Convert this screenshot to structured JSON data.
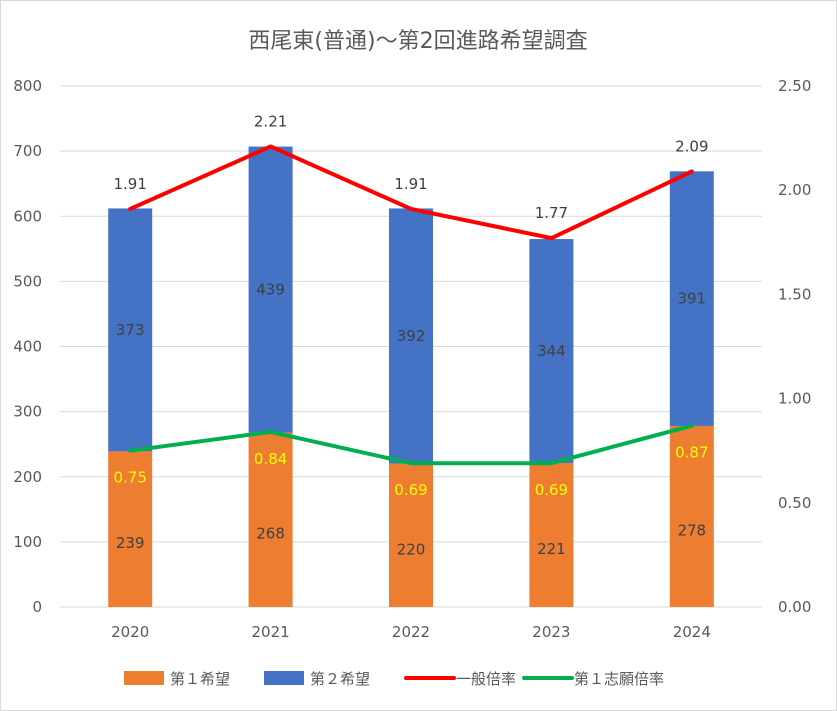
{
  "chart_data": {
    "type": "bar",
    "title": "西尾東(普通)～第2回進路希望調査",
    "categories": [
      "2020",
      "2021",
      "2022",
      "2023",
      "2024"
    ],
    "y_left": {
      "ylim": [
        0,
        800
      ],
      "ticks": [
        "0",
        "100",
        "200",
        "300",
        "400",
        "500",
        "600",
        "700",
        "800"
      ]
    },
    "y_right": {
      "ylim": [
        0,
        2.5
      ],
      "ticks": [
        "0.00",
        "0.50",
        "1.00",
        "1.50",
        "2.00",
        "2.50"
      ]
    },
    "grid": true,
    "legend_position": "bottom",
    "series": [
      {
        "name": "第１希望",
        "type": "bar",
        "stacked": true,
        "axis": "left",
        "color": "#ed7d31",
        "values": [
          239,
          268,
          220,
          221,
          278
        ],
        "labels": [
          "239",
          "268",
          "220",
          "221",
          "278"
        ]
      },
      {
        "name": "第２希望",
        "type": "bar",
        "stacked": true,
        "axis": "left",
        "color": "#4472c4",
        "values": [
          373,
          439,
          392,
          344,
          391
        ],
        "labels": [
          "373",
          "439",
          "392",
          "344",
          "391"
        ]
      },
      {
        "name": "一般倍率",
        "type": "line",
        "axis": "right",
        "color": "#ff0000",
        "values": [
          1.91,
          2.21,
          1.91,
          1.77,
          2.09
        ],
        "labels": [
          "1.91",
          "2.21",
          "1.91",
          "1.77",
          "2.09"
        ]
      },
      {
        "name": "第１志願倍率",
        "type": "line",
        "axis": "right",
        "color": "#00b050",
        "values": [
          0.75,
          0.84,
          0.69,
          0.69,
          0.87
        ],
        "labels": [
          "0.75",
          "0.84",
          "0.69",
          "0.69",
          "0.87"
        ],
        "label_color": "#ffff00"
      }
    ]
  }
}
